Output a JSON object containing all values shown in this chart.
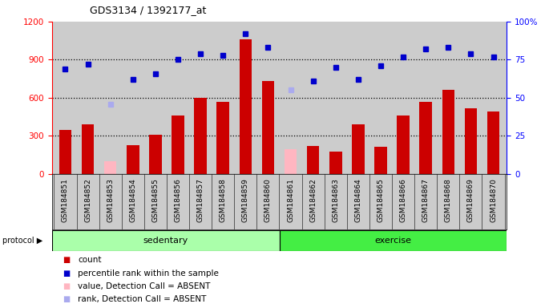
{
  "title": "GDS3134 / 1392177_at",
  "samples": [
    "GSM184851",
    "GSM184852",
    "GSM184853",
    "GSM184854",
    "GSM184855",
    "GSM184856",
    "GSM184857",
    "GSM184858",
    "GSM184859",
    "GSM184860",
    "GSM184861",
    "GSM184862",
    "GSM184863",
    "GSM184864",
    "GSM184865",
    "GSM184866",
    "GSM184867",
    "GSM184868",
    "GSM184869",
    "GSM184870"
  ],
  "count_values": [
    350,
    390,
    null,
    225,
    310,
    460,
    600,
    565,
    1060,
    730,
    null,
    220,
    175,
    390,
    215,
    460,
    570,
    660,
    520,
    490
  ],
  "absent_value_values": [
    null,
    null,
    100,
    null,
    null,
    null,
    null,
    null,
    null,
    null,
    195,
    null,
    null,
    null,
    null,
    null,
    null,
    null,
    null,
    null
  ],
  "percentile_values": [
    69,
    72,
    null,
    62,
    66,
    75,
    79,
    78,
    92,
    83,
    null,
    61,
    70,
    62,
    71,
    77,
    82,
    83,
    79,
    77
  ],
  "absent_rank_values": [
    null,
    null,
    46,
    null,
    null,
    null,
    null,
    null,
    null,
    null,
    55,
    null,
    null,
    null,
    null,
    null,
    null,
    null,
    null,
    null
  ],
  "sedentary_count": 10,
  "exercise_count": 10,
  "bar_color": "#CC0000",
  "absent_bar_color": "#FFB6C1",
  "rank_color": "#0000CC",
  "absent_rank_color": "#AAAAEE",
  "sed_color": "#AAFFAA",
  "exc_color": "#44EE44",
  "plot_bg_color": "#CCCCCC",
  "xtick_bg_color": "#CCCCCC",
  "ylim_left": [
    0,
    1200
  ],
  "ylim_right": [
    0,
    100
  ],
  "yticks_left": [
    0,
    300,
    600,
    900,
    1200
  ],
  "yticks_right": [
    0,
    25,
    50,
    75,
    100
  ],
  "ytick_labels_right": [
    "0",
    "25",
    "50",
    "75",
    "100%"
  ],
  "grid_lines": [
    300,
    600,
    900
  ],
  "legend_items": [
    {
      "color": "#CC0000",
      "label": "count"
    },
    {
      "color": "#0000CC",
      "label": "percentile rank within the sample"
    },
    {
      "color": "#FFB6C1",
      "label": "value, Detection Call = ABSENT"
    },
    {
      "color": "#AAAAEE",
      "label": "rank, Detection Call = ABSENT"
    }
  ]
}
